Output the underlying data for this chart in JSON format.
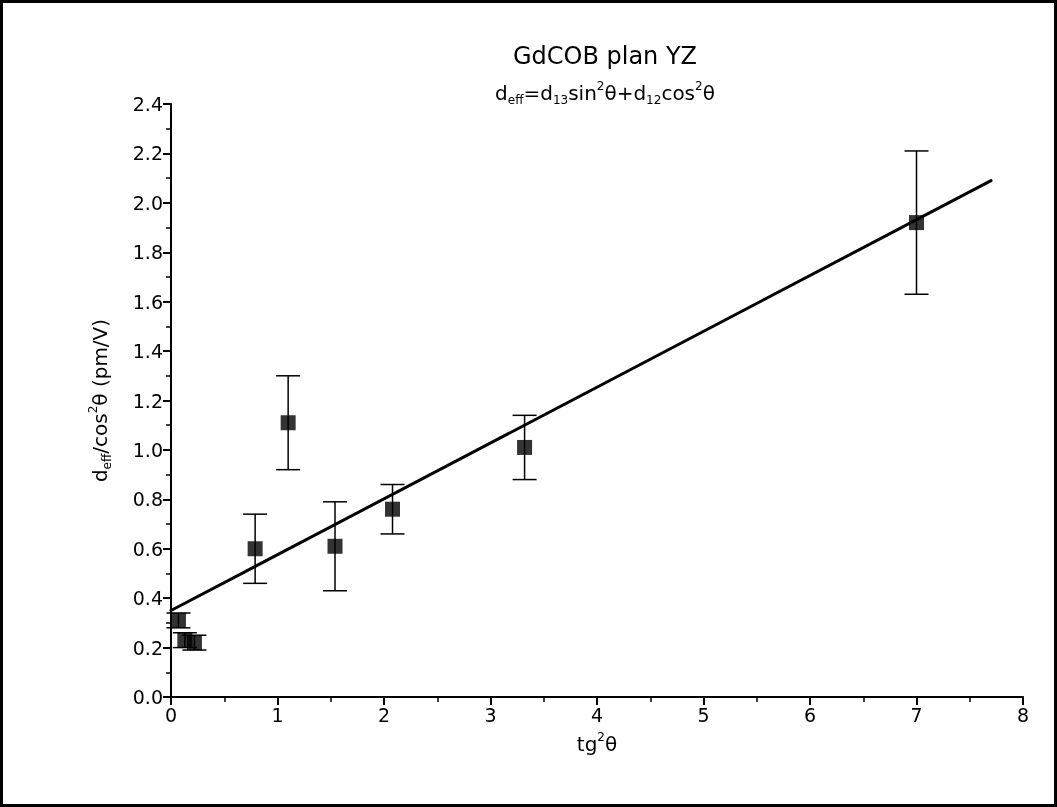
{
  "chart_data": {
    "type": "scatter",
    "title": "GdCOB plan YZ",
    "subtitle": "d$_{eff}$=d$_{13}$sin$^{2}$θ+d$_{12}$cos$^{2}$θ",
    "xlabel": "tg$^{2}$θ",
    "ylabel": "d$_{eff}$/cos$^{2}$θ (pm/V)",
    "xlim": [
      0,
      8
    ],
    "xticks": [
      0,
      1,
      2,
      3,
      4,
      5,
      6,
      7,
      8
    ],
    "ylim": [
      0,
      2.4
    ],
    "yticks": [
      {
        "value": 0,
        "label": "0.0"
      },
      0.2,
      0.4,
      0.6,
      0.8,
      {
        "value": 1,
        "label": "1.0"
      },
      1.2,
      1.4,
      1.6,
      1.8,
      {
        "value": 2,
        "label": "2.0"
      },
      2.2,
      2.4
    ],
    "grid": false,
    "series": [
      {
        "color": "#000000",
        "marker": "square",
        "x": [
          0.07,
          0.13,
          0.22,
          0.79,
          1.1,
          1.54,
          2.08,
          3.32,
          7.0
        ],
        "values": [
          0.31,
          0.23,
          0.22,
          0.6,
          1.11,
          0.61,
          0.76,
          1.01,
          1.92
        ],
        "errors": [
          0.03,
          0.03,
          0.03,
          0.14,
          0.19,
          0.18,
          0.1,
          0.13,
          0.29
        ]
      },
      {
        "type": "line",
        "color": "#000000",
        "marker": "none",
        "line_style": "solid",
        "x": [
          0,
          7.7
        ],
        "values": [
          0.35,
          2.09
        ]
      }
    ]
  }
}
